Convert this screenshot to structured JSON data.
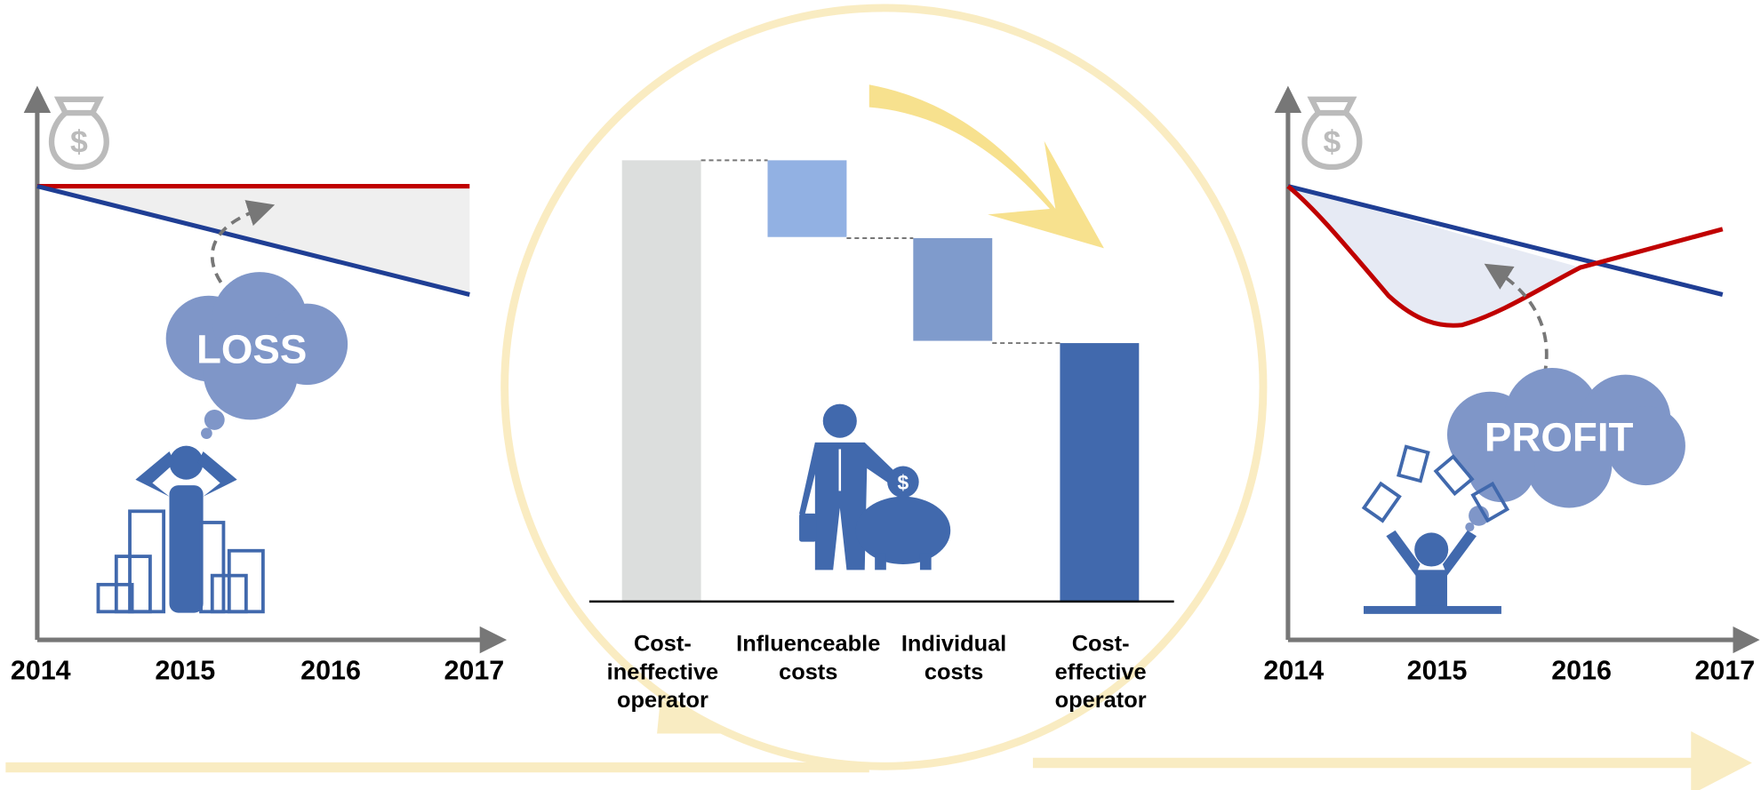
{
  "left_chart": {
    "x_labels": [
      "2014",
      "2015",
      "2016",
      "2017"
    ],
    "callout": "LOSS"
  },
  "waterfall": {
    "categories": [
      [
        "Cost-",
        "ineffective",
        "operator"
      ],
      [
        "Influenceable",
        "costs"
      ],
      [
        "Individual",
        "costs"
      ],
      [
        "Cost-",
        "effective",
        "operator"
      ]
    ]
  },
  "right_chart": {
    "x_labels": [
      "2014",
      "2015",
      "2016",
      "2017"
    ],
    "callout": "PROFIT"
  }
}
